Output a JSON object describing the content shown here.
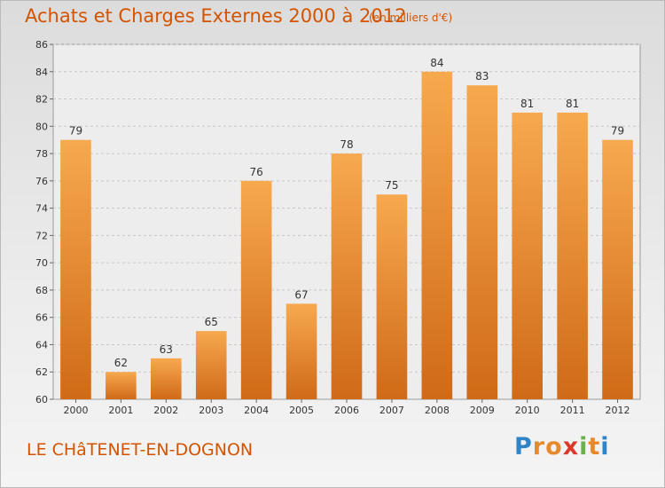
{
  "title": "Achats et Charges Externes 2000 à 2012",
  "subtitle": "(en milliers d'€)",
  "place": "LE CHâTENET-EN-DOGNON",
  "logo": {
    "letters": [
      "P",
      "r",
      "o",
      "x",
      "i",
      "t",
      "i"
    ],
    "colors": [
      "#2f84c7",
      "#e8892b",
      "#e8892b",
      "#d93a2b",
      "#6ab04c",
      "#e8892b",
      "#2f84c7"
    ]
  },
  "colors": {
    "bar_light": "#f7a94f",
    "bar_dark": "#d06a16",
    "text": "#d35400"
  },
  "chart_data": {
    "type": "bar",
    "title": "Achats et Charges Externes 2000 à 2012",
    "categories": [
      "2000",
      "2001",
      "2002",
      "2003",
      "2004",
      "2005",
      "2006",
      "2007",
      "2008",
      "2009",
      "2010",
      "2011",
      "2012"
    ],
    "values": [
      79,
      62,
      63,
      65,
      76,
      67,
      78,
      75,
      84,
      83,
      81,
      81,
      79
    ],
    "ylim": [
      60,
      86
    ],
    "yticks": [
      60,
      62,
      64,
      66,
      68,
      70,
      72,
      74,
      76,
      78,
      80,
      82,
      84,
      86
    ],
    "grid": true,
    "legend": "none"
  }
}
